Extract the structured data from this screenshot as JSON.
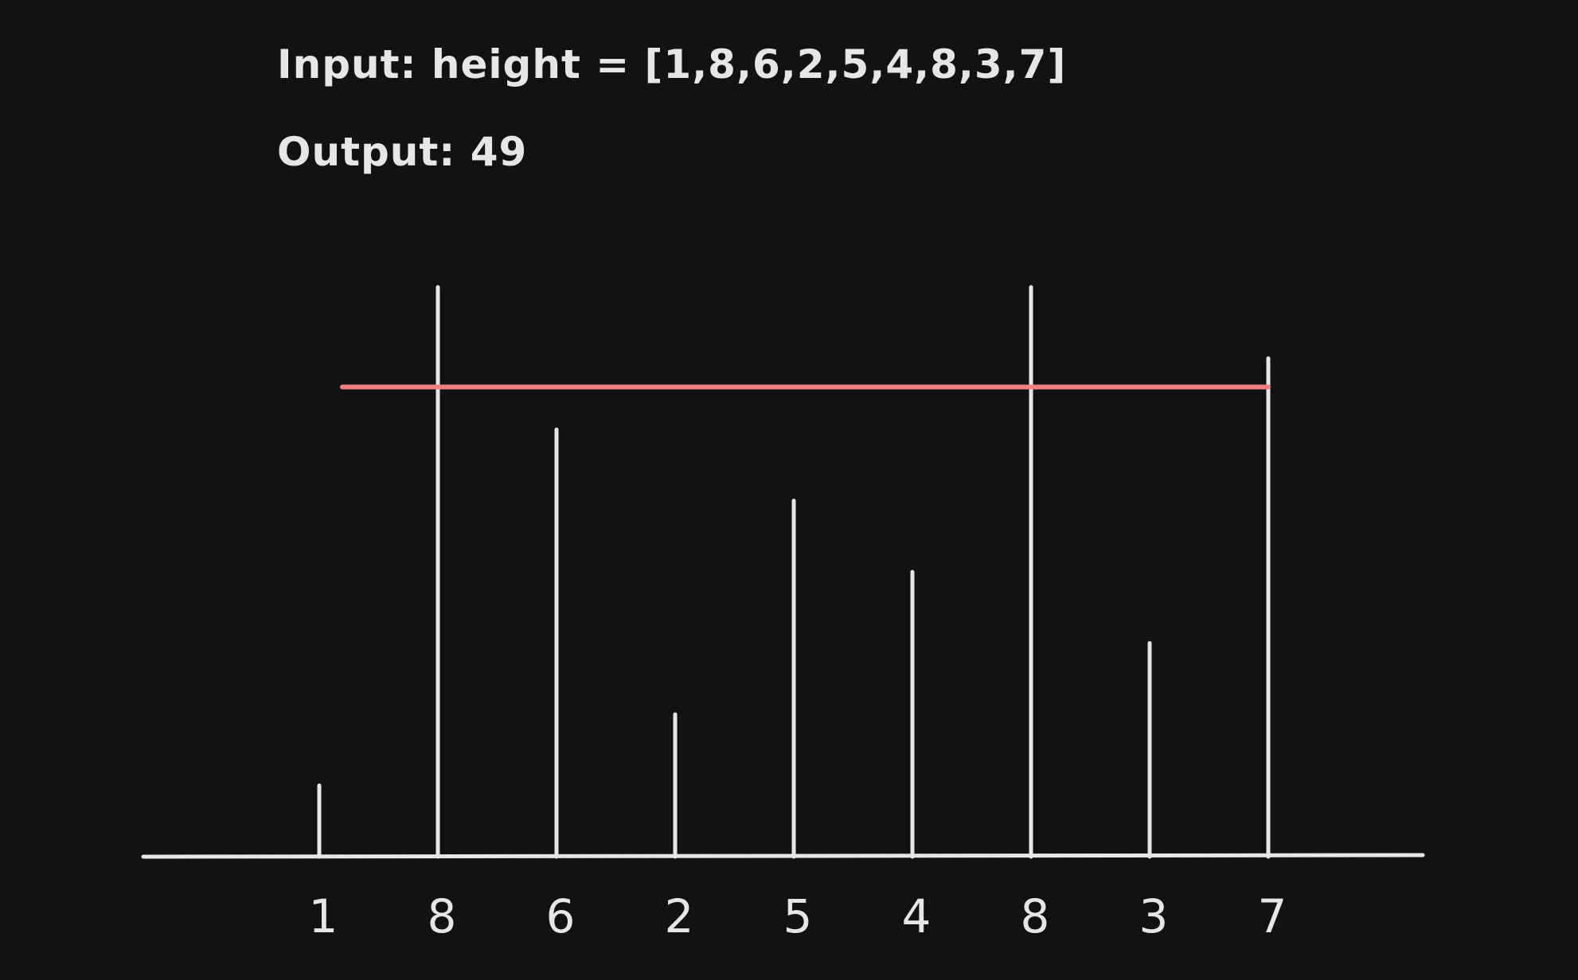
{
  "header": {
    "input_prefix": "Input:",
    "input_text": "height = [1,8,6,2,5,4,8,3,7]",
    "output_prefix": "Output:",
    "output_value": "49"
  },
  "chart_data": {
    "type": "bar",
    "heights": [
      1,
      8,
      6,
      2,
      5,
      4,
      8,
      3,
      7
    ],
    "labels": [
      "1",
      "8",
      "6",
      "2",
      "5",
      "4",
      "8",
      "3",
      "7"
    ],
    "container": {
      "left_index": 1,
      "right_index": 8,
      "water_level": 7,
      "area": 49
    }
  },
  "colors": {
    "background": "#121212",
    "line": "#e6e6e6",
    "water": "#f47f7f"
  }
}
